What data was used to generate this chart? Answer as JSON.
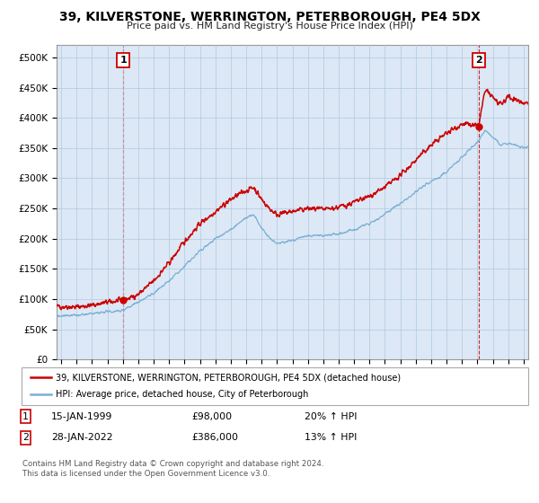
{
  "title": "39, KILVERSTONE, WERRINGTON, PETERBOROUGH, PE4 5DX",
  "subtitle": "Price paid vs. HM Land Registry's House Price Index (HPI)",
  "ylabel_ticks": [
    "£0",
    "£50K",
    "£100K",
    "£150K",
    "£200K",
    "£250K",
    "£300K",
    "£350K",
    "£400K",
    "£450K",
    "£500K"
  ],
  "ytick_values": [
    0,
    50000,
    100000,
    150000,
    200000,
    250000,
    300000,
    350000,
    400000,
    450000,
    500000
  ],
  "ylim": [
    0,
    520000
  ],
  "xlim_start": 1994.7,
  "xlim_end": 2025.3,
  "red_line_color": "#cc0000",
  "blue_line_color": "#7ab0d4",
  "plot_bg_color": "#dce8f5",
  "marker_color": "#cc0000",
  "sale1_x": 1999.04,
  "sale1_y": 98000,
  "sale2_x": 2022.07,
  "sale2_y": 386000,
  "vline_color": "#cc0000",
  "annotation1_label": "1",
  "annotation2_label": "2",
  "legend_label_red": "39, KILVERSTONE, WERRINGTON, PETERBOROUGH, PE4 5DX (detached house)",
  "legend_label_blue": "HPI: Average price, detached house, City of Peterborough",
  "table_row1": [
    "1",
    "15-JAN-1999",
    "£98,000",
    "20% ↑ HPI"
  ],
  "table_row2": [
    "2",
    "28-JAN-2022",
    "£386,000",
    "13% ↑ HPI"
  ],
  "footnote": "Contains HM Land Registry data © Crown copyright and database right 2024.\nThis data is licensed under the Open Government Licence v3.0.",
  "background_color": "#ffffff",
  "grid_color": "#b0c8e0",
  "red_knots_x": [
    1995,
    1996,
    1997,
    1998,
    1999.04,
    2000,
    2001,
    2002,
    2003,
    2004,
    2005,
    2006,
    2007,
    2007.5,
    2008,
    2008.5,
    2009,
    2010,
    2011,
    2012,
    2013,
    2014,
    2015,
    2016,
    2017,
    2018,
    2019,
    2020,
    2021,
    2022.07,
    2022.5,
    2023,
    2023.5,
    2024,
    2024.5,
    2025
  ],
  "red_knots_y": [
    88000,
    87000,
    90000,
    95000,
    98000,
    108000,
    130000,
    160000,
    195000,
    225000,
    245000,
    265000,
    280000,
    285000,
    265000,
    250000,
    240000,
    245000,
    250000,
    248000,
    252000,
    260000,
    270000,
    285000,
    305000,
    330000,
    355000,
    375000,
    390000,
    386000,
    445000,
    435000,
    420000,
    435000,
    430000,
    425000
  ],
  "blue_knots_x": [
    1995,
    1996,
    1997,
    1998,
    1999,
    2000,
    2001,
    2002,
    2003,
    2004,
    2005,
    2006,
    2007,
    2007.5,
    2008,
    2008.5,
    2009,
    2010,
    2011,
    2012,
    2013,
    2014,
    2015,
    2016,
    2017,
    2018,
    2019,
    2020,
    2021,
    2022,
    2022.5,
    2023,
    2023.5,
    2024,
    2024.5,
    2025
  ],
  "blue_knots_y": [
    72000,
    73000,
    76000,
    79000,
    82000,
    95000,
    110000,
    130000,
    155000,
    180000,
    200000,
    215000,
    235000,
    240000,
    218000,
    200000,
    192000,
    198000,
    205000,
    205000,
    208000,
    215000,
    225000,
    240000,
    258000,
    278000,
    295000,
    310000,
    335000,
    360000,
    380000,
    368000,
    355000,
    358000,
    355000,
    352000
  ]
}
